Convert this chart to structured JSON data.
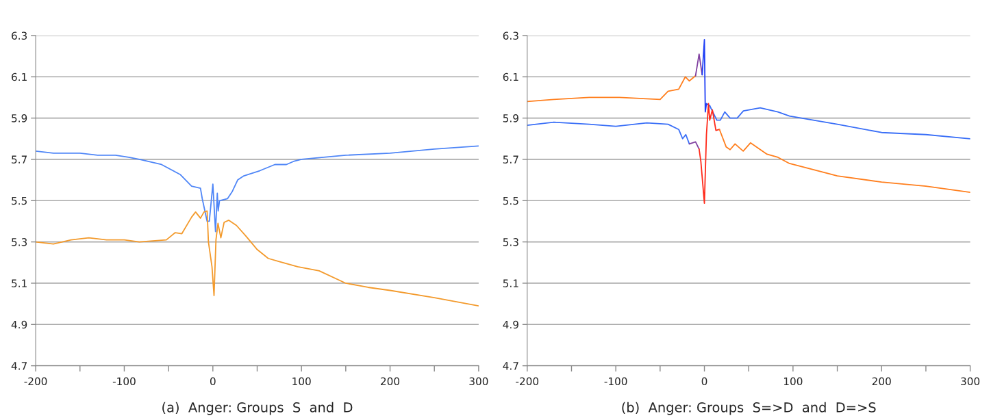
{
  "chart_data": [
    {
      "type": "line",
      "xlim": [
        -200,
        300
      ],
      "ylim": [
        4.7,
        6.3
      ],
      "xticks": [
        -200,
        {
          "value": -150,
          "label": null
        },
        -100,
        {
          "value": -50,
          "label": null
        },
        0,
        {
          "value": 50,
          "label": null
        },
        100,
        {
          "value": 150,
          "label": null
        },
        200,
        {
          "value": 250,
          "label": null
        },
        300
      ],
      "yticks": [
        4.7,
        4.9,
        5.1,
        5.3,
        5.5,
        5.7,
        5.9,
        6.1,
        6.3
      ],
      "grid": "y",
      "legend": false,
      "annotations": [
        "(a)  Anger: Groups  S  and  D"
      ],
      "series": [
        {
          "color": "#4f86f7",
          "x": [
            -200,
            -180,
            -150,
            -130,
            -110,
            -95,
            -83,
            -58,
            -37,
            -24,
            -14,
            -12,
            -6.5,
            -4,
            0,
            3,
            5,
            6,
            7.5,
            16.6,
            22,
            28,
            35,
            53,
            70,
            83,
            91,
            100,
            150,
            200,
            250,
            300
          ],
          "values": [
            5.74,
            5.73,
            5.73,
            5.72,
            5.72,
            5.71,
            5.7,
            5.675,
            5.627,
            5.57,
            5.56,
            5.51,
            5.4,
            5.4,
            5.58,
            5.35,
            5.536,
            5.45,
            5.5,
            5.51,
            5.545,
            5.6,
            5.62,
            5.645,
            5.675,
            5.675,
            5.69,
            5.7,
            5.72,
            5.73,
            5.75,
            5.765
          ]
        },
        {
          "color": "#f39a2c",
          "x": [
            -200,
            -180,
            -160,
            -140,
            -120,
            -100,
            -83,
            -52.5,
            -42.5,
            -35,
            -24,
            -19.5,
            -14,
            -10,
            -6.5,
            -5,
            -1,
            1.3,
            3.5,
            5.8,
            9,
            12.7,
            18,
            26.6,
            37,
            49.6,
            62.5,
            75.6,
            95.7,
            120,
            150,
            175,
            200,
            250,
            300
          ],
          "values": [
            5.3,
            5.29,
            5.31,
            5.32,
            5.31,
            5.31,
            5.3,
            5.31,
            5.345,
            5.34,
            5.42,
            5.445,
            5.415,
            5.445,
            5.45,
            5.3,
            5.18,
            5.04,
            5.31,
            5.39,
            5.32,
            5.395,
            5.405,
            5.38,
            5.33,
            5.265,
            5.22,
            5.204,
            5.18,
            5.16,
            5.1,
            5.08,
            5.065,
            5.03,
            4.99
          ]
        }
      ]
    },
    {
      "type": "line",
      "xlim": [
        -200,
        300
      ],
      "ylim": [
        4.7,
        6.3
      ],
      "xticks": [
        -200,
        {
          "value": -150,
          "label": null
        },
        -100,
        {
          "value": -50,
          "label": null
        },
        0,
        {
          "value": 50,
          "label": null
        },
        100,
        {
          "value": 150,
          "label": null
        },
        200,
        {
          "value": 250,
          "label": null
        },
        300
      ],
      "yticks": [
        4.7,
        4.9,
        5.1,
        5.3,
        5.5,
        5.7,
        5.9,
        6.1,
        6.3
      ],
      "grid": "y",
      "legend": false,
      "annotations": [
        "(b)  Anger: Groups  S=>D  and  D=>S"
      ],
      "series": [
        {
          "color": "#ff7f1e",
          "x": [
            -200,
            -170,
            -130,
            -100,
            -96,
            -50,
            -41,
            -29,
            -21.5,
            -17,
            -10
          ],
          "values": [
            5.98,
            5.99,
            6.0,
            6.0,
            6.0,
            5.99,
            6.03,
            6.04,
            6.1,
            6.08,
            6.105
          ]
        },
        {
          "color": "#8040a0",
          "x": [
            -10,
            -6,
            -2.5
          ],
          "values": [
            6.105,
            6.21,
            6.11
          ]
        },
        {
          "color": "#1f3ff5",
          "x": [
            -2.5,
            0,
            1,
            2.3,
            6
          ],
          "values": [
            6.11,
            6.28,
            5.93,
            5.97,
            5.96
          ]
        },
        {
          "color": "#3a6ff7",
          "x": [
            6,
            14,
            18,
            23,
            29,
            37,
            44,
            63,
            83,
            96,
            150,
            200,
            250,
            300
          ],
          "values": [
            5.96,
            5.89,
            5.89,
            5.93,
            5.9,
            5.9,
            5.935,
            5.95,
            5.93,
            5.91,
            5.87,
            5.83,
            5.82,
            5.8
          ]
        },
        {
          "color": "#3a6ff7",
          "x": [
            -200,
            -170,
            -130,
            -100,
            -65,
            -41,
            -29,
            -24.6,
            -21,
            -17
          ],
          "values": [
            5.865,
            5.88,
            5.87,
            5.86,
            5.877,
            5.87,
            5.845,
            5.8,
            5.82,
            5.775
          ]
        },
        {
          "color": "#8040a0",
          "x": [
            -17,
            -10,
            -6
          ],
          "values": [
            5.775,
            5.785,
            5.75
          ]
        },
        {
          "color": "#ff2a1a",
          "x": [
            -6,
            -4,
            0,
            2.3,
            4.6,
            6,
            9,
            13,
            17
          ],
          "values": [
            5.75,
            5.69,
            5.487,
            5.82,
            5.97,
            5.89,
            5.94,
            5.84,
            5.845
          ]
        },
        {
          "color": "#ff7f1e",
          "x": [
            17,
            24.6,
            29,
            34.6,
            43.8,
            52,
            70.7,
            83,
            96,
            150,
            200,
            250,
            300
          ],
          "values": [
            5.845,
            5.76,
            5.747,
            5.775,
            5.74,
            5.78,
            5.725,
            5.71,
            5.68,
            5.62,
            5.59,
            5.57,
            5.54
          ]
        }
      ]
    }
  ]
}
